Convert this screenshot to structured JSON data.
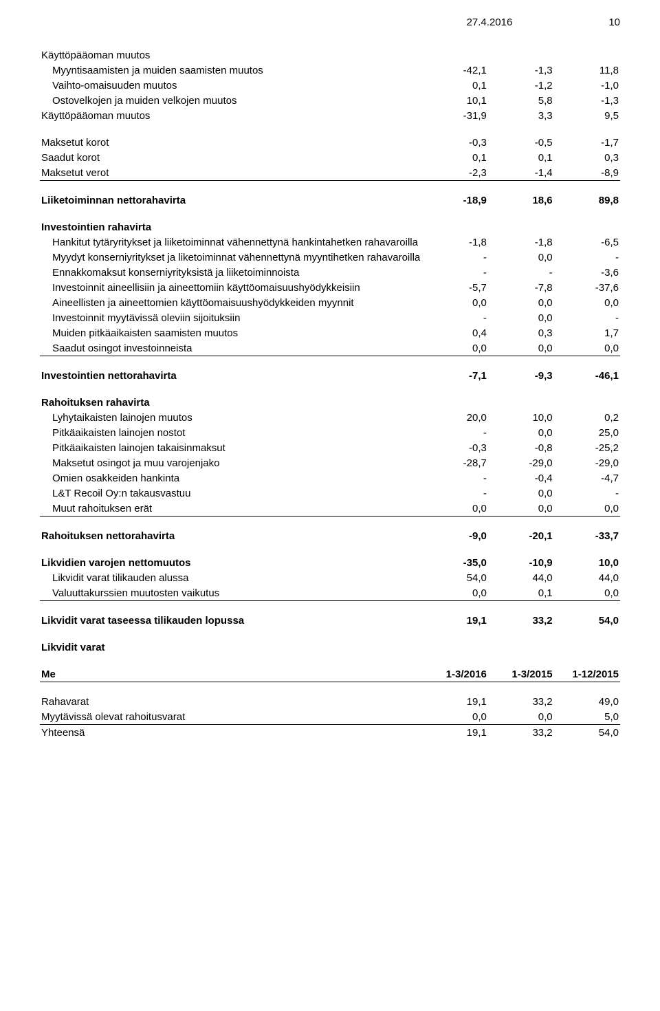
{
  "header": {
    "date": "27.4.2016",
    "page": "10"
  },
  "tables": {
    "main": {
      "columns": 4,
      "rows": [
        {
          "type": "line",
          "label": "Käyttöpääoman muutos",
          "vals": [
            "",
            "",
            ""
          ]
        },
        {
          "type": "line",
          "indent": true,
          "label": "Myyntisaamisten ja muiden saamisten muutos",
          "vals": [
            "-42,1",
            "-1,3",
            "11,8"
          ]
        },
        {
          "type": "line",
          "indent": true,
          "label": "Vaihto-omaisuuden muutos",
          "vals": [
            "0,1",
            "-1,2",
            "-1,0"
          ]
        },
        {
          "type": "line",
          "indent": true,
          "label": "Ostovelkojen ja muiden velkojen muutos",
          "vals": [
            "10,1",
            "5,8",
            "-1,3"
          ]
        },
        {
          "type": "line",
          "label": "Käyttöpääoman muutos",
          "vals": [
            "-31,9",
            "3,3",
            "9,5"
          ]
        },
        {
          "type": "spacer"
        },
        {
          "type": "line",
          "label": "Maksetut korot",
          "vals": [
            "-0,3",
            "-0,5",
            "-1,7"
          ]
        },
        {
          "type": "line",
          "label": "Saadut korot",
          "vals": [
            "0,1",
            "0,1",
            "0,3"
          ]
        },
        {
          "type": "line",
          "underline": true,
          "label": "Maksetut verot",
          "vals": [
            "-2,3",
            "-1,4",
            "-8,9"
          ]
        },
        {
          "type": "spacer"
        },
        {
          "type": "bold",
          "label": "Liiketoiminnan nettorahavirta",
          "vals": [
            "-18,9",
            "18,6",
            "89,8"
          ]
        },
        {
          "type": "spacer"
        },
        {
          "type": "bold",
          "label": "Investointien rahavirta",
          "vals": [
            "",
            "",
            ""
          ]
        },
        {
          "type": "line",
          "indent": true,
          "label": "Hankitut tytäryritykset ja liiketoiminnat vähennettynä hankintahetken rahavaroilla",
          "vals": [
            "-1,8",
            "-1,8",
            "-6,5"
          ]
        },
        {
          "type": "line",
          "indent": true,
          "label": "Myydyt konserniyritykset ja liketoiminnat vähennettynä myyntihetken rahavaroilla",
          "vals": [
            "-",
            "0,0",
            "-"
          ]
        },
        {
          "type": "line",
          "indent": true,
          "label": "Ennakkomaksut konserniyrityksistä ja liiketoiminnoista",
          "vals": [
            "-",
            "-",
            "-3,6"
          ]
        },
        {
          "type": "line",
          "indent": true,
          "label": "Investoinnit aineellisiin ja aineettomiin käyttöomaisuushyödykkeisiin",
          "vals": [
            "-5,7",
            "-7,8",
            "-37,6"
          ]
        },
        {
          "type": "line",
          "indent": true,
          "label": "Aineellisten ja aineettomien käyttöomaisuushyödykkeiden myynnit",
          "vals": [
            "0,0",
            "0,0",
            "0,0"
          ]
        },
        {
          "type": "line",
          "indent": true,
          "label": "Investoinnit myytävissä oleviin sijoituksiin",
          "vals": [
            "-",
            "0,0",
            "-"
          ]
        },
        {
          "type": "line",
          "indent": true,
          "label": "Muiden pitkäaikaisten saamisten muutos",
          "vals": [
            "0,4",
            "0,3",
            "1,7"
          ]
        },
        {
          "type": "line",
          "indent": true,
          "underline": true,
          "label": "Saadut osingot investoinneista",
          "vals": [
            "0,0",
            "0,0",
            "0,0"
          ]
        },
        {
          "type": "spacer"
        },
        {
          "type": "bold",
          "label": "Investointien nettorahavirta",
          "vals": [
            "-7,1",
            "-9,3",
            "-46,1"
          ]
        },
        {
          "type": "spacer"
        },
        {
          "type": "bold",
          "label": "Rahoituksen rahavirta",
          "vals": [
            "",
            "",
            ""
          ]
        },
        {
          "type": "line",
          "indent": true,
          "label": "Lyhytaikaisten lainojen muutos",
          "vals": [
            "20,0",
            "10,0",
            "0,2"
          ]
        },
        {
          "type": "line",
          "indent": true,
          "label": "Pitkäaikaisten lainojen nostot",
          "vals": [
            "-",
            "0,0",
            "25,0"
          ]
        },
        {
          "type": "line",
          "indent": true,
          "label": "Pitkäaikaisten lainojen takaisinmaksut",
          "vals": [
            "-0,3",
            "-0,8",
            "-25,2"
          ]
        },
        {
          "type": "line",
          "indent": true,
          "label": "Maksetut osingot ja muu varojenjako",
          "vals": [
            "-28,7",
            "-29,0",
            "-29,0"
          ]
        },
        {
          "type": "line",
          "indent": true,
          "label": "Omien osakkeiden hankinta",
          "vals": [
            "-",
            "-0,4",
            "-4,7"
          ]
        },
        {
          "type": "line",
          "indent": true,
          "label": "L&T Recoil Oy:n takausvastuu",
          "vals": [
            "-",
            "0,0",
            "-"
          ]
        },
        {
          "type": "line",
          "indent": true,
          "underline": true,
          "label": "Muut rahoituksen erät",
          "vals": [
            "0,0",
            "0,0",
            "0,0"
          ]
        },
        {
          "type": "spacer"
        },
        {
          "type": "bold",
          "label": "Rahoituksen nettorahavirta",
          "vals": [
            "-9,0",
            "-20,1",
            "-33,7"
          ]
        },
        {
          "type": "spacer"
        },
        {
          "type": "bold",
          "label": "Likvidien varojen nettomuutos",
          "vals": [
            "-35,0",
            "-10,9",
            "10,0"
          ]
        },
        {
          "type": "line",
          "indent": true,
          "label": "Likvidit varat tilikauden alussa",
          "vals": [
            "54,0",
            "44,0",
            "44,0"
          ]
        },
        {
          "type": "line",
          "indent": true,
          "underline": true,
          "label": "Valuuttakurssien muutosten vaikutus",
          "vals": [
            "0,0",
            "0,1",
            "0,0"
          ]
        },
        {
          "type": "spacer"
        },
        {
          "type": "bold",
          "label": "Likvidit varat taseessa tilikauden lopussa",
          "vals": [
            "19,1",
            "33,2",
            "54,0"
          ]
        },
        {
          "type": "spacer"
        },
        {
          "type": "bold",
          "label": "Likvidit varat",
          "vals": [
            "",
            "",
            ""
          ]
        },
        {
          "type": "spacer"
        },
        {
          "type": "headrow",
          "underline": true,
          "label": "Me",
          "vals": [
            "1-3/2016",
            "1-3/2015",
            "1-12/2015"
          ]
        },
        {
          "type": "spacer"
        },
        {
          "type": "line",
          "label": "Rahavarat",
          "vals": [
            "19,1",
            "33,2",
            "49,0"
          ]
        },
        {
          "type": "line",
          "underline": true,
          "label": "Myytävissä olevat rahoitusvarat",
          "vals": [
            "0,0",
            "0,0",
            "5,0"
          ]
        },
        {
          "type": "line",
          "label": "Yhteensä",
          "vals": [
            "19,1",
            "33,2",
            "54,0"
          ]
        }
      ]
    }
  },
  "style": {
    "font_family": "Arial",
    "font_size_pt": 11,
    "text_color": "#000000",
    "background_color": "#ffffff",
    "rule_color": "#000000"
  }
}
